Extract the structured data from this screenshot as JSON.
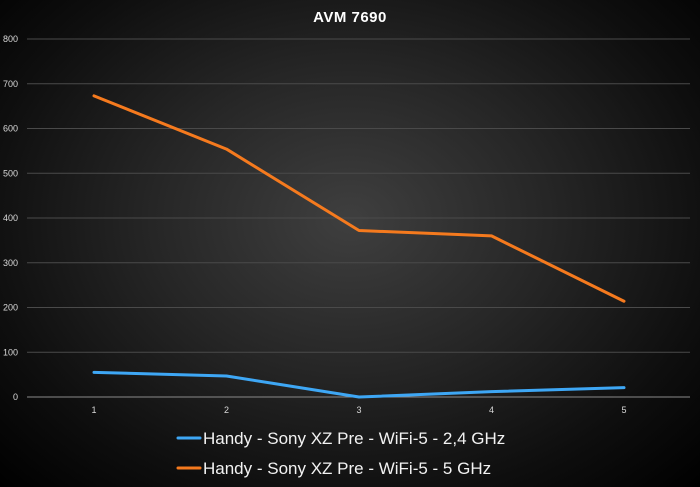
{
  "chart_data": {
    "type": "line",
    "title": "AVM 7690",
    "xlabel": "",
    "ylabel": "",
    "x": [
      1,
      2,
      3,
      4,
      5
    ],
    "ylim": [
      0,
      800
    ],
    "yticks": [
      0,
      100,
      200,
      300,
      400,
      500,
      600,
      700,
      800
    ],
    "grid": true,
    "legend": "bottom",
    "series": [
      {
        "name": "Handy - Sony XZ Pre - WiFi-5 - 2,4 GHz",
        "color": "#3ea7f5",
        "values": [
          55,
          47,
          0,
          12,
          21
        ]
      },
      {
        "name": "Handy - Sony XZ Pre - WiFi-5 - 5 GHz",
        "color": "#f57a1e",
        "values": [
          673,
          554,
          372,
          360,
          214
        ]
      }
    ]
  }
}
